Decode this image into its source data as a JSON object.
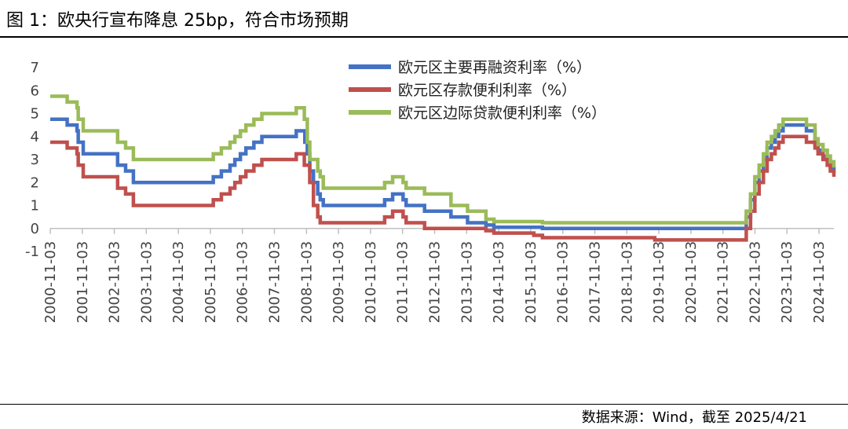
{
  "title": "图 1：欧央行宣布降息 25bp，符合市场预期",
  "source": "数据来源：Wind，截至 2025/4/21",
  "colors": {
    "mro": "#4472C4",
    "deposit": "#C0504D",
    "marginal": "#9BBB59",
    "axis": "#BFBFBF",
    "tick_text": "#444444"
  },
  "chart_data": {
    "type": "line",
    "title": "",
    "xlabel": "",
    "ylabel": "",
    "ylim": [
      -1,
      7
    ],
    "yticks": [
      "7",
      "6",
      "5",
      "4",
      "3",
      "2",
      "1",
      "0",
      "-1"
    ],
    "xlim": [
      "2000-11-03",
      "2025-04-21"
    ],
    "xticks": [
      "2000-11-03",
      "2001-11-03",
      "2002-11-03",
      "2003-11-03",
      "2004-11-03",
      "2005-11-03",
      "2006-11-03",
      "2007-11-03",
      "2008-11-03",
      "2009-11-03",
      "2010-11-03",
      "2011-11-03",
      "2012-11-03",
      "2013-11-03",
      "2014-11-03",
      "2015-11-03",
      "2016-11-03",
      "2017-11-03",
      "2018-11-03",
      "2019-11-03",
      "2020-11-03",
      "2021-11-03",
      "2022-11-03",
      "2023-11-03",
      "2024-11-03"
    ],
    "legend_position": "top",
    "step": true,
    "series": [
      {
        "name": "欧元区主要再融资利率（%）",
        "color_key": "mro",
        "points": [
          [
            "2000-10-11",
            4.75
          ],
          [
            "2001-05-15",
            4.5
          ],
          [
            "2001-09-04",
            4.25
          ],
          [
            "2001-09-18",
            3.75
          ],
          [
            "2001-11-14",
            3.25
          ],
          [
            "2002-12-11",
            2.75
          ],
          [
            "2003-03-12",
            2.5
          ],
          [
            "2003-06-09",
            2.0
          ],
          [
            "2005-12-06",
            2.25
          ],
          [
            "2006-03-08",
            2.5
          ],
          [
            "2006-06-15",
            2.75
          ],
          [
            "2006-08-09",
            3.0
          ],
          [
            "2006-10-11",
            3.25
          ],
          [
            "2006-12-13",
            3.5
          ],
          [
            "2007-03-14",
            3.75
          ],
          [
            "2007-06-13",
            4.0
          ],
          [
            "2008-07-09",
            4.25
          ],
          [
            "2008-10-15",
            3.75
          ],
          [
            "2008-11-12",
            3.25
          ],
          [
            "2008-12-10",
            2.5
          ],
          [
            "2009-01-21",
            2.0
          ],
          [
            "2009-03-11",
            1.5
          ],
          [
            "2009-04-08",
            1.25
          ],
          [
            "2009-05-13",
            1.0
          ],
          [
            "2011-04-13",
            1.25
          ],
          [
            "2011-07-13",
            1.5
          ],
          [
            "2011-11-09",
            1.25
          ],
          [
            "2011-12-14",
            1.0
          ],
          [
            "2012-07-11",
            0.75
          ],
          [
            "2013-05-08",
            0.5
          ],
          [
            "2013-11-13",
            0.25
          ],
          [
            "2014-06-11",
            0.15
          ],
          [
            "2014-09-10",
            0.05
          ],
          [
            "2016-03-16",
            0.0
          ],
          [
            "2022-07-27",
            0.5
          ],
          [
            "2022-09-14",
            1.25
          ],
          [
            "2022-11-02",
            2.0
          ],
          [
            "2022-12-21",
            2.5
          ],
          [
            "2023-02-08",
            3.0
          ],
          [
            "2023-03-22",
            3.5
          ],
          [
            "2023-05-10",
            3.75
          ],
          [
            "2023-06-21",
            4.0
          ],
          [
            "2023-08-02",
            4.25
          ],
          [
            "2023-09-20",
            4.5
          ],
          [
            "2024-06-12",
            4.25
          ],
          [
            "2024-09-18",
            3.65
          ],
          [
            "2024-10-23",
            3.4
          ],
          [
            "2024-12-18",
            3.15
          ],
          [
            "2025-02-05",
            2.9
          ],
          [
            "2025-03-12",
            2.65
          ],
          [
            "2025-04-21",
            2.4
          ]
        ]
      },
      {
        "name": "欧元区存款便利利率（%）",
        "color_key": "deposit",
        "points": [
          [
            "2000-10-11",
            3.75
          ],
          [
            "2001-05-15",
            3.5
          ],
          [
            "2001-09-04",
            3.25
          ],
          [
            "2001-09-18",
            2.75
          ],
          [
            "2001-11-14",
            2.25
          ],
          [
            "2002-12-11",
            1.75
          ],
          [
            "2003-03-12",
            1.5
          ],
          [
            "2003-06-09",
            1.0
          ],
          [
            "2005-12-06",
            1.25
          ],
          [
            "2006-03-08",
            1.5
          ],
          [
            "2006-06-15",
            1.75
          ],
          [
            "2006-08-09",
            2.0
          ],
          [
            "2006-10-11",
            2.25
          ],
          [
            "2006-12-13",
            2.5
          ],
          [
            "2007-03-14",
            2.75
          ],
          [
            "2007-06-13",
            3.0
          ],
          [
            "2008-07-09",
            3.25
          ],
          [
            "2008-10-09",
            2.75
          ],
          [
            "2008-11-12",
            2.75
          ],
          [
            "2008-12-10",
            2.0
          ],
          [
            "2009-01-21",
            1.0
          ],
          [
            "2009-03-11",
            0.5
          ],
          [
            "2009-04-08",
            0.25
          ],
          [
            "2011-04-13",
            0.5
          ],
          [
            "2011-07-13",
            0.75
          ],
          [
            "2011-11-09",
            0.5
          ],
          [
            "2011-12-14",
            0.25
          ],
          [
            "2012-07-11",
            0.0
          ],
          [
            "2014-06-11",
            -0.1
          ],
          [
            "2014-09-10",
            -0.2
          ],
          [
            "2015-12-09",
            -0.3
          ],
          [
            "2016-03-16",
            -0.4
          ],
          [
            "2019-09-18",
            -0.5
          ],
          [
            "2022-07-27",
            0.0
          ],
          [
            "2022-09-14",
            0.75
          ],
          [
            "2022-11-02",
            1.5
          ],
          [
            "2022-12-21",
            2.0
          ],
          [
            "2023-02-08",
            2.5
          ],
          [
            "2023-03-22",
            3.0
          ],
          [
            "2023-05-10",
            3.25
          ],
          [
            "2023-06-21",
            3.5
          ],
          [
            "2023-08-02",
            3.75
          ],
          [
            "2023-09-20",
            4.0
          ],
          [
            "2024-06-12",
            3.75
          ],
          [
            "2024-09-18",
            3.5
          ],
          [
            "2024-10-23",
            3.25
          ],
          [
            "2024-12-18",
            3.0
          ],
          [
            "2025-02-05",
            2.75
          ],
          [
            "2025-03-12",
            2.5
          ],
          [
            "2025-04-21",
            2.25
          ]
        ]
      },
      {
        "name": "欧元区边际贷款便利利率（%）",
        "color_key": "marginal",
        "points": [
          [
            "2000-10-11",
            5.75
          ],
          [
            "2001-05-15",
            5.5
          ],
          [
            "2001-09-04",
            5.25
          ],
          [
            "2001-09-18",
            4.75
          ],
          [
            "2001-11-14",
            4.25
          ],
          [
            "2002-12-11",
            3.75
          ],
          [
            "2003-03-12",
            3.5
          ],
          [
            "2003-06-09",
            3.0
          ],
          [
            "2005-12-06",
            3.25
          ],
          [
            "2006-03-08",
            3.5
          ],
          [
            "2006-06-15",
            3.75
          ],
          [
            "2006-08-09",
            4.0
          ],
          [
            "2006-10-11",
            4.25
          ],
          [
            "2006-12-13",
            4.5
          ],
          [
            "2007-03-14",
            4.75
          ],
          [
            "2007-06-13",
            5.0
          ],
          [
            "2008-07-09",
            5.25
          ],
          [
            "2008-10-09",
            4.75
          ],
          [
            "2008-11-12",
            3.75
          ],
          [
            "2008-12-10",
            3.0
          ],
          [
            "2009-01-21",
            3.0
          ],
          [
            "2009-03-11",
            2.5
          ],
          [
            "2009-04-08",
            2.25
          ],
          [
            "2009-05-13",
            1.75
          ],
          [
            "2011-04-13",
            2.0
          ],
          [
            "2011-07-13",
            2.25
          ],
          [
            "2011-11-09",
            2.0
          ],
          [
            "2011-12-14",
            1.75
          ],
          [
            "2012-07-11",
            1.5
          ],
          [
            "2013-05-08",
            1.0
          ],
          [
            "2013-11-13",
            0.75
          ],
          [
            "2014-06-11",
            0.4
          ],
          [
            "2014-09-10",
            0.3
          ],
          [
            "2016-03-16",
            0.25
          ],
          [
            "2022-07-27",
            0.75
          ],
          [
            "2022-09-14",
            1.5
          ],
          [
            "2022-11-02",
            2.25
          ],
          [
            "2022-12-21",
            2.75
          ],
          [
            "2023-02-08",
            3.25
          ],
          [
            "2023-03-22",
            3.75
          ],
          [
            "2023-05-10",
            4.0
          ],
          [
            "2023-06-21",
            4.25
          ],
          [
            "2023-08-02",
            4.5
          ],
          [
            "2023-09-20",
            4.75
          ],
          [
            "2024-06-12",
            4.5
          ],
          [
            "2024-09-18",
            3.9
          ],
          [
            "2024-10-23",
            3.65
          ],
          [
            "2024-12-18",
            3.4
          ],
          [
            "2025-02-05",
            3.15
          ],
          [
            "2025-03-12",
            2.9
          ],
          [
            "2025-04-21",
            2.65
          ]
        ]
      }
    ]
  }
}
